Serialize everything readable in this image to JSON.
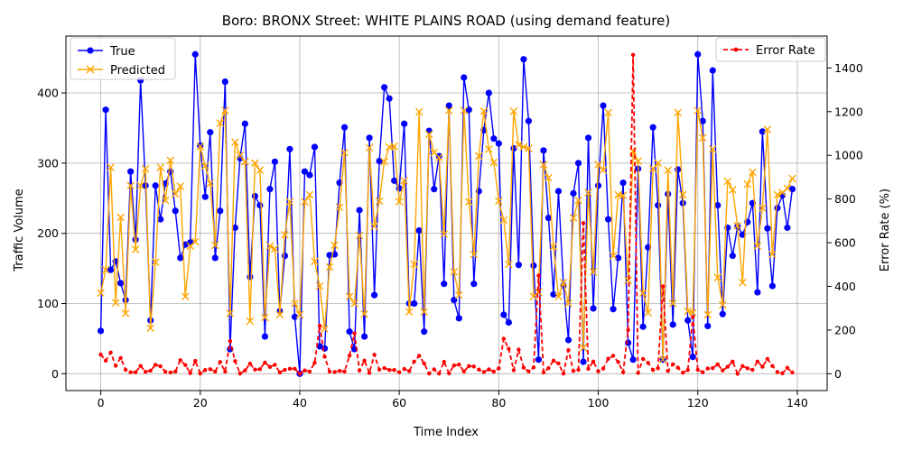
{
  "chart_data": {
    "type": "line",
    "title": "Boro: BRONX Street: WHITE PLAINS ROAD (using demand feature)",
    "xlabel": "Time Index",
    "ylabel": "Traffic Volume",
    "y2label": "Error Rate (%)",
    "xlim": [
      -7,
      146
    ],
    "ylim": [
      -24,
      481
    ],
    "y2lim": [
      -77,
      1546
    ],
    "xticks": [
      0,
      20,
      40,
      60,
      80,
      100,
      120,
      140
    ],
    "yticks": [
      0,
      100,
      200,
      300,
      400
    ],
    "y2ticks": [
      0,
      200,
      400,
      600,
      800,
      1000,
      1200,
      1400
    ],
    "grid": true,
    "legend_left_placement": "upper-left",
    "legend_right_placement": "upper-right",
    "colors": {
      "true": "#0000ff",
      "predicted": "#ffa500",
      "error": "#ff0000",
      "grid": "#b0b0b0"
    },
    "series": [
      {
        "name": "True",
        "axis": "left",
        "marker": "circle",
        "values": [
          61,
          376,
          148,
          160,
          129,
          105,
          288,
          191,
          418,
          268,
          76,
          268,
          220,
          271,
          288,
          232,
          165,
          184,
          187,
          455,
          325,
          252,
          344,
          165,
          232,
          416,
          35,
          208,
          307,
          356,
          138,
          253,
          240,
          53,
          263,
          302,
          89,
          168,
          320,
          81,
          0,
          288,
          283,
          323,
          39,
          36,
          169,
          170,
          272,
          351,
          60,
          35,
          233,
          53,
          336,
          112,
          303,
          408,
          392,
          275,
          264,
          356,
          100,
          100,
          204,
          60,
          346,
          263,
          310,
          128,
          382,
          105,
          79,
          422,
          376,
          128,
          260,
          347,
          400,
          335,
          328,
          84,
          73,
          321,
          155,
          448,
          360,
          154,
          20,
          318,
          222,
          113,
          260,
          126,
          48,
          257,
          300,
          17,
          336,
          93,
          268,
          382,
          220,
          92,
          165,
          272,
          44,
          20,
          292,
          67,
          180,
          351,
          240,
          20,
          256,
          70,
          291,
          243,
          76,
          24,
          455,
          360,
          68,
          432,
          240,
          85,
          208,
          168,
          210,
          198,
          216,
          243,
          116,
          345,
          207,
          125,
          236,
          254,
          208,
          263
        ]
      },
      {
        "name": "Predicted",
        "axis": "left",
        "marker": "x",
        "values": [
          115,
          148,
          294,
          101,
          223,
          86,
          268,
          177,
          268,
          292,
          65,
          159,
          294,
          247,
          304,
          256,
          267,
          110,
          182,
          188,
          324,
          296,
          271,
          183,
          357,
          375,
          86,
          330,
          311,
          302,
          75,
          300,
          290,
          80,
          182,
          178,
          84,
          198,
          245,
          100,
          84,
          245,
          255,
          160,
          125,
          64,
          152,
          183,
          237,
          315,
          110,
          100,
          197,
          85,
          322,
          210,
          246,
          302,
          323,
          324,
          245,
          275,
          88,
          156,
          373,
          88,
          341,
          315,
          308,
          199,
          375,
          145,
          112,
          375,
          245,
          170,
          310,
          374,
          320,
          301,
          246,
          219,
          156,
          374,
          326,
          323,
          321,
          110,
          116,
          298,
          279,
          181,
          110,
          130,
          100,
          222,
          247,
          37,
          258,
          145,
          298,
          290,
          372,
          168,
          255,
          254,
          133,
          317,
          303,
          115,
          87,
          292,
          300,
          20,
          290,
          100,
          372,
          255,
          89,
          87,
          375,
          336,
          84,
          320,
          137,
          98,
          274,
          262,
          211,
          130,
          270,
          287,
          182,
          236,
          348,
          170,
          255,
          258,
          264,
          278
        ]
      },
      {
        "name": "Error Rate",
        "axis": "right",
        "marker": "dot",
        "dashed": true,
        "values": [
          88,
          60,
          97,
          37,
          72,
          18,
          7,
          7,
          36,
          9,
          14,
          41,
          34,
          9,
          6,
          10,
          62,
          40,
          3,
          59,
          1,
          17,
          21,
          10,
          54,
          10,
          150,
          58,
          1,
          15,
          46,
          19,
          21,
          51,
          31,
          41,
          6,
          18,
          23,
          23,
          0,
          15,
          10,
          50,
          220,
          78,
          10,
          8,
          13,
          10,
          83,
          185,
          15,
          60,
          4,
          87,
          19,
          26,
          17,
          17,
          7,
          22,
          12,
          56,
          82,
          47,
          1,
          20,
          1,
          55,
          2,
          38,
          42,
          11,
          35,
          33,
          19,
          8,
          20,
          10,
          25,
          160,
          114,
          16,
          110,
          28,
          11,
          29,
          450,
          6,
          26,
          60,
          47,
          1,
          108,
          13,
          18,
          690,
          23,
          56,
          11,
          24,
          69,
          82,
          54,
          7,
          200,
          1460,
          4,
          68,
          50,
          17,
          25,
          400,
          13,
          43,
          28,
          5,
          17,
          260,
          18,
          7,
          24,
          26,
          43,
          15,
          32,
          56,
          0,
          35,
          25,
          18,
          56,
          32,
          68,
          36,
          8,
          2,
          27,
          6
        ]
      }
    ]
  }
}
